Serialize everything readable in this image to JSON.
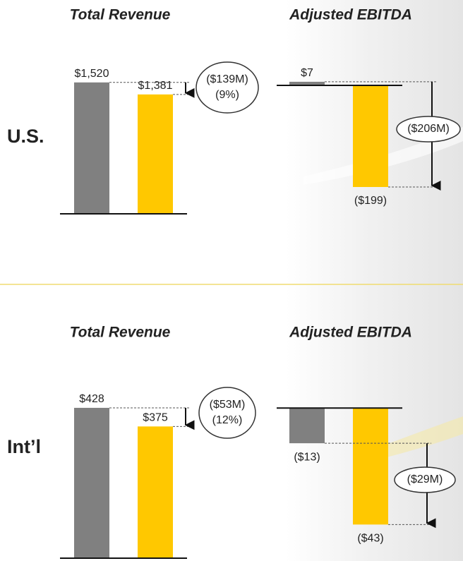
{
  "sections": [
    {
      "label": "U.S."
    },
    {
      "label": "Int’l"
    }
  ],
  "chart_data": [
    {
      "type": "bar",
      "title": "Total Revenue",
      "categories": [
        null,
        null
      ],
      "values": [
        1520,
        1381
      ],
      "value_labels": [
        "$1,520",
        "$1,381"
      ],
      "colors": [
        "#808080",
        "#ffc800"
      ],
      "ylim": [
        0,
        1600
      ],
      "annotation": [
        "($139M)",
        "(9%)"
      ]
    },
    {
      "type": "bar",
      "title": "Adjusted EBITDA",
      "categories": [
        null,
        null
      ],
      "values": [
        7,
        -199
      ],
      "value_labels": [
        "$7",
        "($199)"
      ],
      "colors": [
        "#808080",
        "#ffc800"
      ],
      "ylim": [
        -220,
        20
      ],
      "annotation": [
        "($206M)"
      ]
    },
    {
      "type": "bar",
      "title": "Total Revenue",
      "categories": [
        null,
        null
      ],
      "values": [
        428,
        375
      ],
      "value_labels": [
        "$428",
        "$375"
      ],
      "colors": [
        "#808080",
        "#ffc800"
      ],
      "ylim": [
        0,
        450
      ],
      "annotation": [
        "($53M)",
        "(12%)"
      ]
    },
    {
      "type": "bar",
      "title": "Adjusted EBITDA",
      "categories": [
        null,
        null
      ],
      "values": [
        -13,
        -43
      ],
      "value_labels": [
        "($13)",
        "($43)"
      ],
      "colors": [
        "#808080",
        "#ffc800"
      ],
      "ylim": [
        -45,
        5
      ],
      "annotation": [
        "($29M)"
      ]
    }
  ]
}
